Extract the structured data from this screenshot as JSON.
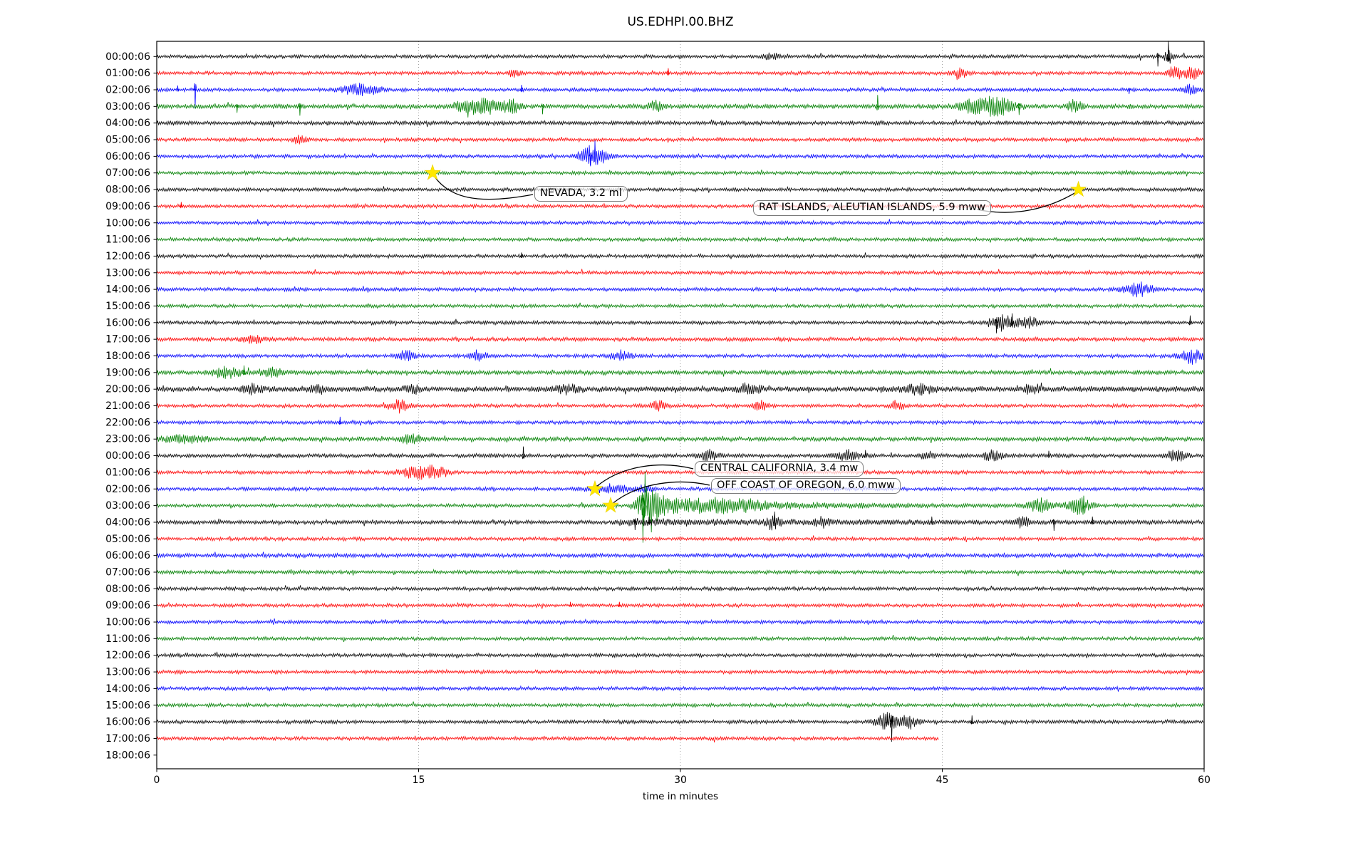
{
  "title": "US.EDHPI.00.BHZ",
  "axes": {
    "xlabel": "time in minutes",
    "x_tick_labels": [
      "0",
      "15",
      "30",
      "45",
      "60"
    ],
    "x_tick_values": [
      0,
      15,
      30,
      45,
      60
    ],
    "x_range": [
      0,
      60
    ],
    "y_line_labels": [
      "00:00:06",
      "01:00:06",
      "02:00:06",
      "03:00:06",
      "04:00:06",
      "05:00:06",
      "06:00:06",
      "07:00:06",
      "08:00:06",
      "09:00:06",
      "10:00:06",
      "11:00:06",
      "12:00:06",
      "13:00:06",
      "14:00:06",
      "15:00:06",
      "16:00:06",
      "17:00:06",
      "18:00:06",
      "19:00:06",
      "20:00:06",
      "21:00:06",
      "22:00:06",
      "23:00:06",
      "00:00:06",
      "01:00:06",
      "02:00:06",
      "03:00:06",
      "04:00:06",
      "05:00:06",
      "06:00:06",
      "07:00:06",
      "08:00:06",
      "09:00:06",
      "10:00:06",
      "11:00:06",
      "12:00:06",
      "13:00:06",
      "14:00:06",
      "15:00:06",
      "16:00:06",
      "17:00:06",
      "18:00:06"
    ]
  },
  "colors": {
    "trace_cycle": [
      "#000000",
      "#ff0000",
      "#0000ff",
      "#008000"
    ],
    "event_marker": "#ffe800",
    "grid": "#999999",
    "axis": "#000000"
  },
  "chart_data": {
    "type": "seismogram_dayplot",
    "title": "US.EDHPI.00.BHZ",
    "xlabel": "time in minutes",
    "minutes_per_line": 60,
    "x_ticks": [
      0,
      15,
      30,
      45,
      60
    ],
    "grid": "vertical dotted lines at 15, 30, 45 minutes",
    "lines_count": 43,
    "color_cycle_note": "traces cycle black, red, blue, green; last labeled line 18:00:06 has no trace; line 17:00:06 (index 41) ends at ~44.8 min",
    "events": [
      {
        "label": "NEVADA, 3.2 ml",
        "line_index": 7,
        "line_label": "07:00:06",
        "minute": 15.8
      },
      {
        "label": "RAT ISLANDS, ALEUTIAN ISLANDS, 5.9 mww",
        "line_index": 8,
        "line_label": "08:00:06",
        "minute": 52.8
      },
      {
        "label": "CENTRAL CALIFORNIA, 3.4 mw",
        "line_index": 26,
        "line_label": "02:00:06",
        "minute": 25.1
      },
      {
        "label": "OFF COAST OF OREGON, 6.0 mww",
        "line_index": 27,
        "line_label": "03:00:06",
        "minute": 26.0
      }
    ],
    "rows": [
      {
        "i": 0,
        "f": [
          [
            "s",
            57.35,
            -14
          ],
          [
            "s",
            57.95,
            22
          ],
          [
            "b",
            58.0,
            0.2,
            8
          ],
          [
            "b",
            35.2,
            0.3,
            5
          ]
        ]
      },
      {
        "i": 1,
        "f": [
          [
            "b",
            20.5,
            0.25,
            5
          ],
          [
            "s",
            29.3,
            7
          ],
          [
            "b",
            46.0,
            0.3,
            6
          ],
          [
            "b",
            58.35,
            0.35,
            9
          ],
          [
            "b",
            59.35,
            0.3,
            8
          ]
        ]
      },
      {
        "i": 2,
        "f": [
          [
            "s",
            1.2,
            6
          ],
          [
            "s",
            2.2,
            -26
          ],
          [
            "b",
            11.7,
            0.8,
            7
          ],
          [
            "s",
            20.9,
            7
          ],
          [
            "s",
            55.7,
            -6
          ],
          [
            "b",
            59.2,
            0.3,
            6
          ]
        ]
      },
      {
        "i": 3,
        "n": 1.25,
        "f": [
          [
            "s",
            4.6,
            -9
          ],
          [
            "s",
            8.2,
            -13
          ],
          [
            "b",
            17.6,
            0.5,
            8
          ],
          [
            "b",
            18.8,
            0.6,
            10
          ],
          [
            "b",
            20.3,
            0.4,
            9
          ],
          [
            "s",
            22.1,
            -11
          ],
          [
            "b",
            28.6,
            0.3,
            7
          ],
          [
            "s",
            41.3,
            16
          ],
          [
            "b",
            46.6,
            0.5,
            8
          ],
          [
            "b",
            48.1,
            0.7,
            12
          ],
          [
            "s",
            49.4,
            -12
          ],
          [
            "b",
            52.6,
            0.3,
            8
          ]
        ]
      },
      {
        "i": 4,
        "n": 1.15,
        "f": []
      },
      {
        "i": 5,
        "f": [
          [
            "b",
            8.2,
            0.3,
            5
          ]
        ]
      },
      {
        "i": 6,
        "f": [
          [
            "b",
            25.0,
            0.55,
            14
          ],
          [
            "s",
            24.85,
            -14
          ],
          [
            "s",
            25.1,
            22
          ]
        ]
      },
      {
        "i": 7,
        "f": []
      },
      {
        "i": 8,
        "f": []
      },
      {
        "i": 9,
        "f": [
          [
            "s",
            1.4,
            6
          ]
        ]
      },
      {
        "i": 10,
        "f": []
      },
      {
        "i": 11,
        "f": []
      },
      {
        "i": 12,
        "f": [
          [
            "s",
            20.9,
            5
          ]
        ]
      },
      {
        "i": 13,
        "f": []
      },
      {
        "i": 14,
        "f": [
          [
            "b",
            56.2,
            0.6,
            9
          ]
        ]
      },
      {
        "i": 15,
        "f": []
      },
      {
        "i": 16,
        "f": [
          [
            "b",
            48.4,
            0.5,
            11
          ],
          [
            "s",
            48.1,
            -15
          ],
          [
            "s",
            49.0,
            13
          ],
          [
            "b",
            49.9,
            0.4,
            8
          ],
          [
            "s",
            59.2,
            10
          ]
        ]
      },
      {
        "i": 17,
        "n": 1.1,
        "f": [
          [
            "b",
            5.6,
            0.5,
            5
          ]
        ]
      },
      {
        "i": 18,
        "f": [
          [
            "b",
            14.3,
            0.4,
            7
          ],
          [
            "b",
            18.4,
            0.3,
            8
          ],
          [
            "b",
            26.6,
            0.4,
            7
          ],
          [
            "b",
            59.3,
            0.5,
            10
          ]
        ]
      },
      {
        "i": 19,
        "n": 1.2,
        "f": [
          [
            "b",
            3.9,
            0.6,
            7
          ],
          [
            "s",
            5.0,
            10
          ],
          [
            "b",
            6.6,
            0.5,
            6
          ]
        ]
      },
      {
        "i": 20,
        "n": 1.5,
        "f": [
          [
            "b",
            5.5,
            0.5,
            5
          ],
          [
            "b",
            9.1,
            0.4,
            5
          ],
          [
            "b",
            14.6,
            0.4,
            5
          ],
          [
            "b",
            23.6,
            0.5,
            5
          ],
          [
            "b",
            33.9,
            0.5,
            6
          ],
          [
            "b",
            43.6,
            0.6,
            6
          ],
          [
            "b",
            50.1,
            0.4,
            5
          ]
        ]
      },
      {
        "i": 21,
        "f": [
          [
            "b",
            13.9,
            0.4,
            8
          ],
          [
            "b",
            28.8,
            0.4,
            6
          ],
          [
            "b",
            34.6,
            0.3,
            6
          ],
          [
            "b",
            42.4,
            0.3,
            6
          ]
        ]
      },
      {
        "i": 22,
        "f": [
          [
            "s",
            10.5,
            8
          ]
        ]
      },
      {
        "i": 23,
        "n": 1.2,
        "f": [
          [
            "b",
            1.6,
            0.8,
            5
          ],
          [
            "b",
            14.6,
            0.4,
            6
          ]
        ]
      },
      {
        "i": 24,
        "n": 1.1,
        "f": [
          [
            "s",
            21.0,
            13
          ],
          [
            "b",
            31.6,
            0.4,
            7
          ],
          [
            "b",
            39.6,
            0.5,
            7
          ],
          [
            "s",
            40.6,
            8
          ],
          [
            "b",
            44.1,
            0.3,
            6
          ],
          [
            "b",
            47.9,
            0.4,
            7
          ],
          [
            "s",
            51.1,
            7
          ],
          [
            "b",
            58.4,
            0.4,
            8
          ]
        ]
      },
      {
        "i": 25,
        "f": [
          [
            "b",
            14.9,
            0.7,
            9
          ],
          [
            "b",
            16.1,
            0.4,
            7
          ]
        ]
      },
      {
        "i": 26,
        "f": [
          [
            "b",
            26.0,
            0.9,
            5
          ],
          [
            "b",
            28.0,
            0.3,
            5
          ]
        ]
      },
      {
        "i": 27,
        "f": [
          [
            "s",
            27.85,
            -52
          ],
          [
            "s",
            27.97,
            48
          ],
          [
            "b",
            28.15,
            0.45,
            26
          ],
          [
            "c",
            28.3,
            6,
            12
          ],
          [
            "b",
            33.1,
            1.2,
            5
          ],
          [
            "b",
            50.6,
            0.5,
            9
          ],
          [
            "b",
            52.9,
            0.5,
            11
          ],
          [
            "s",
            53.1,
            14
          ]
        ]
      },
      {
        "i": 28,
        "n": 1.12,
        "f": [
          [
            "c",
            26.5,
            14,
            3
          ],
          [
            "s",
            27.4,
            -11
          ],
          [
            "s",
            28.2,
            8
          ],
          [
            "b",
            35.3,
            0.25,
            8
          ],
          [
            "s",
            35.4,
            15
          ],
          [
            "b",
            38.1,
            0.3,
            6
          ],
          [
            "s",
            44.4,
            8
          ],
          [
            "b",
            49.6,
            0.3,
            6
          ],
          [
            "s",
            51.4,
            -12
          ],
          [
            "s",
            53.6,
            8
          ]
        ]
      },
      {
        "i": 29,
        "f": []
      },
      {
        "i": 30,
        "n": 1.15,
        "f": []
      },
      {
        "i": 31,
        "f": []
      },
      {
        "i": 32,
        "f": []
      },
      {
        "i": 33,
        "f": [
          [
            "s",
            23.7,
            5
          ],
          [
            "s",
            26.5,
            5
          ]
        ]
      },
      {
        "i": 34,
        "f": []
      },
      {
        "i": 35,
        "f": []
      },
      {
        "i": 36,
        "f": []
      },
      {
        "i": 37,
        "f": []
      },
      {
        "i": 38,
        "f": []
      },
      {
        "i": 39,
        "f": []
      },
      {
        "i": 40,
        "f": [
          [
            "b",
            41.8,
            0.5,
            10
          ],
          [
            "s",
            41.85,
            14
          ],
          [
            "s",
            42.1,
            -28
          ],
          [
            "b",
            43.1,
            0.4,
            8
          ],
          [
            "s",
            46.7,
            9
          ]
        ]
      },
      {
        "i": 41,
        "end": 44.8,
        "f": []
      },
      {
        "i": 42,
        "end": 0,
        "f": []
      }
    ]
  }
}
